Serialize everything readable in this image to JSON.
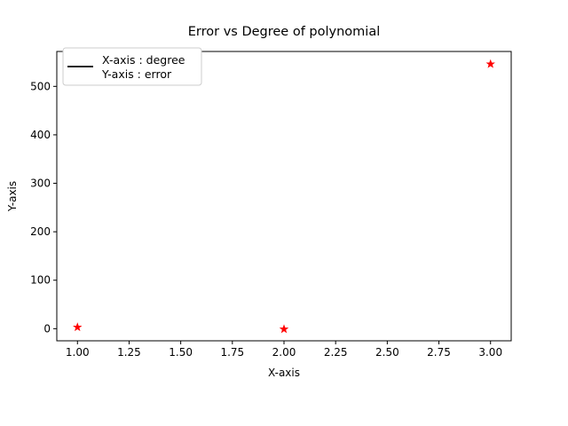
{
  "chart_data": {
    "type": "scatter",
    "title": "Error vs Degree of polynomial",
    "xlabel": "X-axis",
    "ylabel": "Y-axis",
    "xlim": [
      0.9,
      3.1
    ],
    "ylim": [
      -25,
      572
    ],
    "xticks": [
      1.0,
      1.25,
      1.5,
      1.75,
      2.0,
      2.25,
      2.5,
      2.75,
      3.0
    ],
    "xtick_labels": [
      "1.00",
      "1.25",
      "1.50",
      "1.75",
      "2.00",
      "2.25",
      "2.50",
      "2.75",
      "3.00"
    ],
    "yticks": [
      0,
      100,
      200,
      300,
      400,
      500
    ],
    "ytick_labels": [
      "0",
      "100",
      "200",
      "300",
      "400",
      "500"
    ],
    "grid": false,
    "legend": {
      "placement": "top-left",
      "entries": [
        "X-axis : degree",
        "Y-axis : error"
      ],
      "line_color": "#000000"
    },
    "series": [
      {
        "marker": "star",
        "color": "#ff0000",
        "x": [
          1,
          2,
          3
        ],
        "y": [
          3,
          -1,
          546
        ]
      }
    ]
  }
}
